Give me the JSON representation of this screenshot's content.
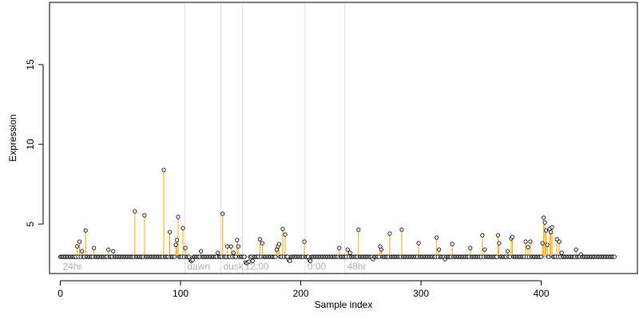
{
  "chart_data": {
    "type": "scatter",
    "title": "",
    "xlabel": "Sample index",
    "ylabel": "Expression",
    "xlim": [
      -9,
      480
    ],
    "ylim": [
      1.9,
      18.9
    ],
    "x_ticks": [
      0,
      100,
      200,
      300,
      400
    ],
    "y_ticks": [
      5,
      10,
      15
    ],
    "baseline": 2.95,
    "grid": false,
    "colors": {
      "stem": "#FFA500",
      "baseline_band": "#A9BCE0",
      "region_line": "#DDDDDD",
      "point_stroke": "#000000",
      "point_fill": "#FFFFFF"
    },
    "regions": [
      {
        "x": 103.5,
        "label": "dawn"
      },
      {
        "x": 133.5,
        "label": "dusk"
      },
      {
        "x": 151.5,
        "label": "12:00"
      },
      {
        "x": 203.5,
        "label": "0:00"
      },
      {
        "x": 236.5,
        "label": "48hr"
      }
    ],
    "start_label": "24hr",
    "peaks": [
      {
        "x": 14,
        "y": 3.6
      },
      {
        "x": 16,
        "y": 3.9
      },
      {
        "x": 18,
        "y": 3.3
      },
      {
        "x": 21,
        "y": 4.6
      },
      {
        "x": 28,
        "y": 3.5
      },
      {
        "x": 40,
        "y": 3.4
      },
      {
        "x": 44,
        "y": 3.3
      },
      {
        "x": 62,
        "y": 5.8
      },
      {
        "x": 70,
        "y": 5.55
      },
      {
        "x": 86,
        "y": 8.4
      },
      {
        "x": 91,
        "y": 4.5
      },
      {
        "x": 96,
        "y": 3.7
      },
      {
        "x": 97,
        "y": 4.0
      },
      {
        "x": 98,
        "y": 5.45
      },
      {
        "x": 102,
        "y": 4.75
      },
      {
        "x": 104,
        "y": 3.5
      },
      {
        "x": 117,
        "y": 3.3
      },
      {
        "x": 131,
        "y": 3.2
      },
      {
        "x": 135,
        "y": 5.65
      },
      {
        "x": 139,
        "y": 3.6
      },
      {
        "x": 142,
        "y": 3.6
      },
      {
        "x": 144,
        "y": 3.2
      },
      {
        "x": 147,
        "y": 4.0
      },
      {
        "x": 148,
        "y": 3.6
      },
      {
        "x": 166,
        "y": 4.05
      },
      {
        "x": 168,
        "y": 3.8
      },
      {
        "x": 180,
        "y": 3.4
      },
      {
        "x": 181,
        "y": 3.6
      },
      {
        "x": 182,
        "y": 3.75
      },
      {
        "x": 185,
        "y": 4.7
      },
      {
        "x": 187,
        "y": 4.35
      },
      {
        "x": 203,
        "y": 3.9
      },
      {
        "x": 232,
        "y": 3.5
      },
      {
        "x": 239,
        "y": 3.4
      },
      {
        "x": 241,
        "y": 3.2
      },
      {
        "x": 248,
        "y": 4.65
      },
      {
        "x": 266,
        "y": 3.6
      },
      {
        "x": 267,
        "y": 3.4
      },
      {
        "x": 274,
        "y": 4.4
      },
      {
        "x": 284,
        "y": 4.65
      },
      {
        "x": 298,
        "y": 3.8
      },
      {
        "x": 313,
        "y": 4.15
      },
      {
        "x": 315,
        "y": 3.4
      },
      {
        "x": 326,
        "y": 3.75
      },
      {
        "x": 341,
        "y": 3.5
      },
      {
        "x": 351,
        "y": 4.3
      },
      {
        "x": 353,
        "y": 3.4
      },
      {
        "x": 364,
        "y": 4.3
      },
      {
        "x": 365,
        "y": 3.8
      },
      {
        "x": 372,
        "y": 3.3
      },
      {
        "x": 375,
        "y": 4.1
      },
      {
        "x": 376,
        "y": 4.2
      },
      {
        "x": 387,
        "y": 3.9
      },
      {
        "x": 389,
        "y": 3.55
      },
      {
        "x": 391,
        "y": 3.9
      },
      {
        "x": 401,
        "y": 3.8
      },
      {
        "x": 402,
        "y": 5.4
      },
      {
        "x": 403,
        "y": 5.1
      },
      {
        "x": 404,
        "y": 4.6
      },
      {
        "x": 405,
        "y": 3.7
      },
      {
        "x": 407,
        "y": 4.7
      },
      {
        "x": 408,
        "y": 4.5
      },
      {
        "x": 409,
        "y": 4.8
      },
      {
        "x": 413,
        "y": 4.05
      },
      {
        "x": 415,
        "y": 3.9
      },
      {
        "x": 417,
        "y": 3.2
      },
      {
        "x": 429,
        "y": 3.4
      },
      {
        "x": 433,
        "y": 3.1
      }
    ],
    "dips": [
      {
        "x": 108,
        "y": 2.75
      },
      {
        "x": 109,
        "y": 2.7
      },
      {
        "x": 110,
        "y": 2.75
      },
      {
        "x": 154,
        "y": 2.6
      },
      {
        "x": 155,
        "y": 2.55
      },
      {
        "x": 156,
        "y": 2.6
      },
      {
        "x": 157,
        "y": 2.65
      },
      {
        "x": 160,
        "y": 2.7
      },
      {
        "x": 190,
        "y": 2.75
      },
      {
        "x": 191,
        "y": 2.7
      },
      {
        "x": 207,
        "y": 2.75
      },
      {
        "x": 208,
        "y": 2.7
      },
      {
        "x": 260,
        "y": 2.8
      },
      {
        "x": 320,
        "y": 2.8
      }
    ],
    "n_points": 462
  }
}
